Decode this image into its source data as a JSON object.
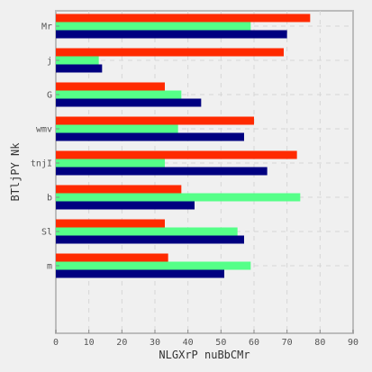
{
  "chart_data": {
    "type": "bar",
    "orientation": "horizontal",
    "categories": [
      "Mr",
      "j",
      "G",
      "wmv",
      "tnjI",
      "b",
      "Sl",
      "m"
    ],
    "series": [
      {
        "values": [
          77,
          69,
          33,
          60,
          73,
          38,
          33,
          34
        ],
        "color": "#ff2a00"
      },
      {
        "values": [
          59,
          13,
          38,
          37,
          33,
          74,
          55,
          59
        ],
        "color": "#55ff88"
      },
      {
        "values": [
          70,
          14,
          44,
          57,
          64,
          42,
          57,
          51
        ],
        "color": "#000080"
      }
    ],
    "xlabel": "NLGXrP nuBbCMr",
    "ylabel": "BTljPY Nk",
    "xlim": [
      0,
      90
    ],
    "xticks": [
      0,
      10,
      20,
      30,
      40,
      50,
      60,
      70,
      80,
      90
    ],
    "grid": true,
    "legend": "none"
  }
}
